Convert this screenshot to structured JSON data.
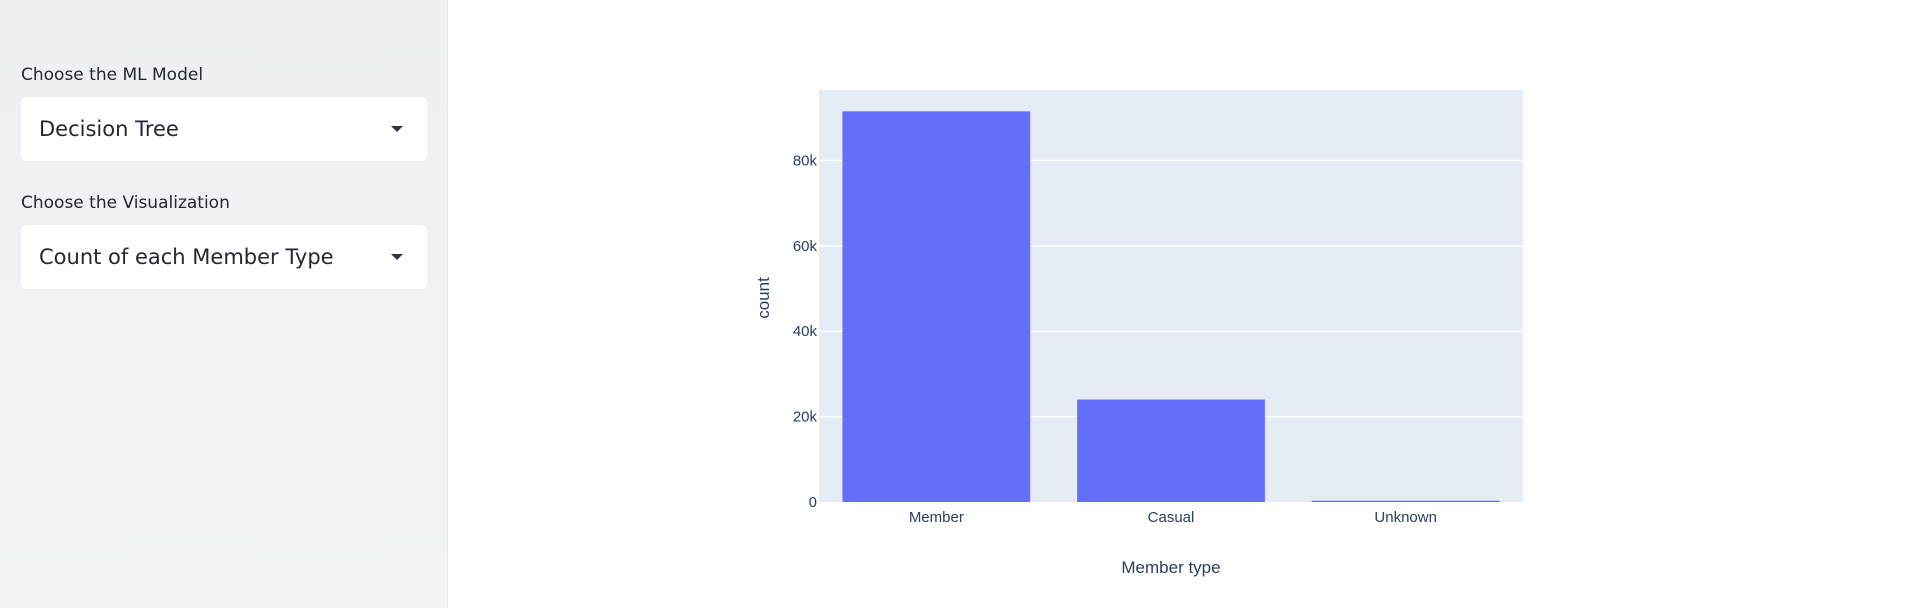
{
  "sidebar": {
    "model_label": "Choose the ML Model",
    "model_value": "Decision Tree",
    "viz_label": "Choose the Visualization",
    "viz_value": "Count of each Member Type"
  },
  "colors": {
    "bar": "#636efa",
    "plot_bg": "#e5ecf6",
    "grid": "#ffffff",
    "text": "#2a3f5f"
  },
  "chart_data": {
    "type": "bar",
    "categories": [
      "Member",
      "Casual",
      "Unknown"
    ],
    "values": [
      91500,
      24000,
      300
    ],
    "title": "",
    "xlabel": "Member type",
    "ylabel": "count",
    "ylim": [
      0,
      96500
    ],
    "yticks": [
      0,
      20000,
      40000,
      60000,
      80000
    ],
    "ytick_labels": [
      "0",
      "20k",
      "40k",
      "60k",
      "80k"
    ],
    "grid": true,
    "legend": "none"
  }
}
